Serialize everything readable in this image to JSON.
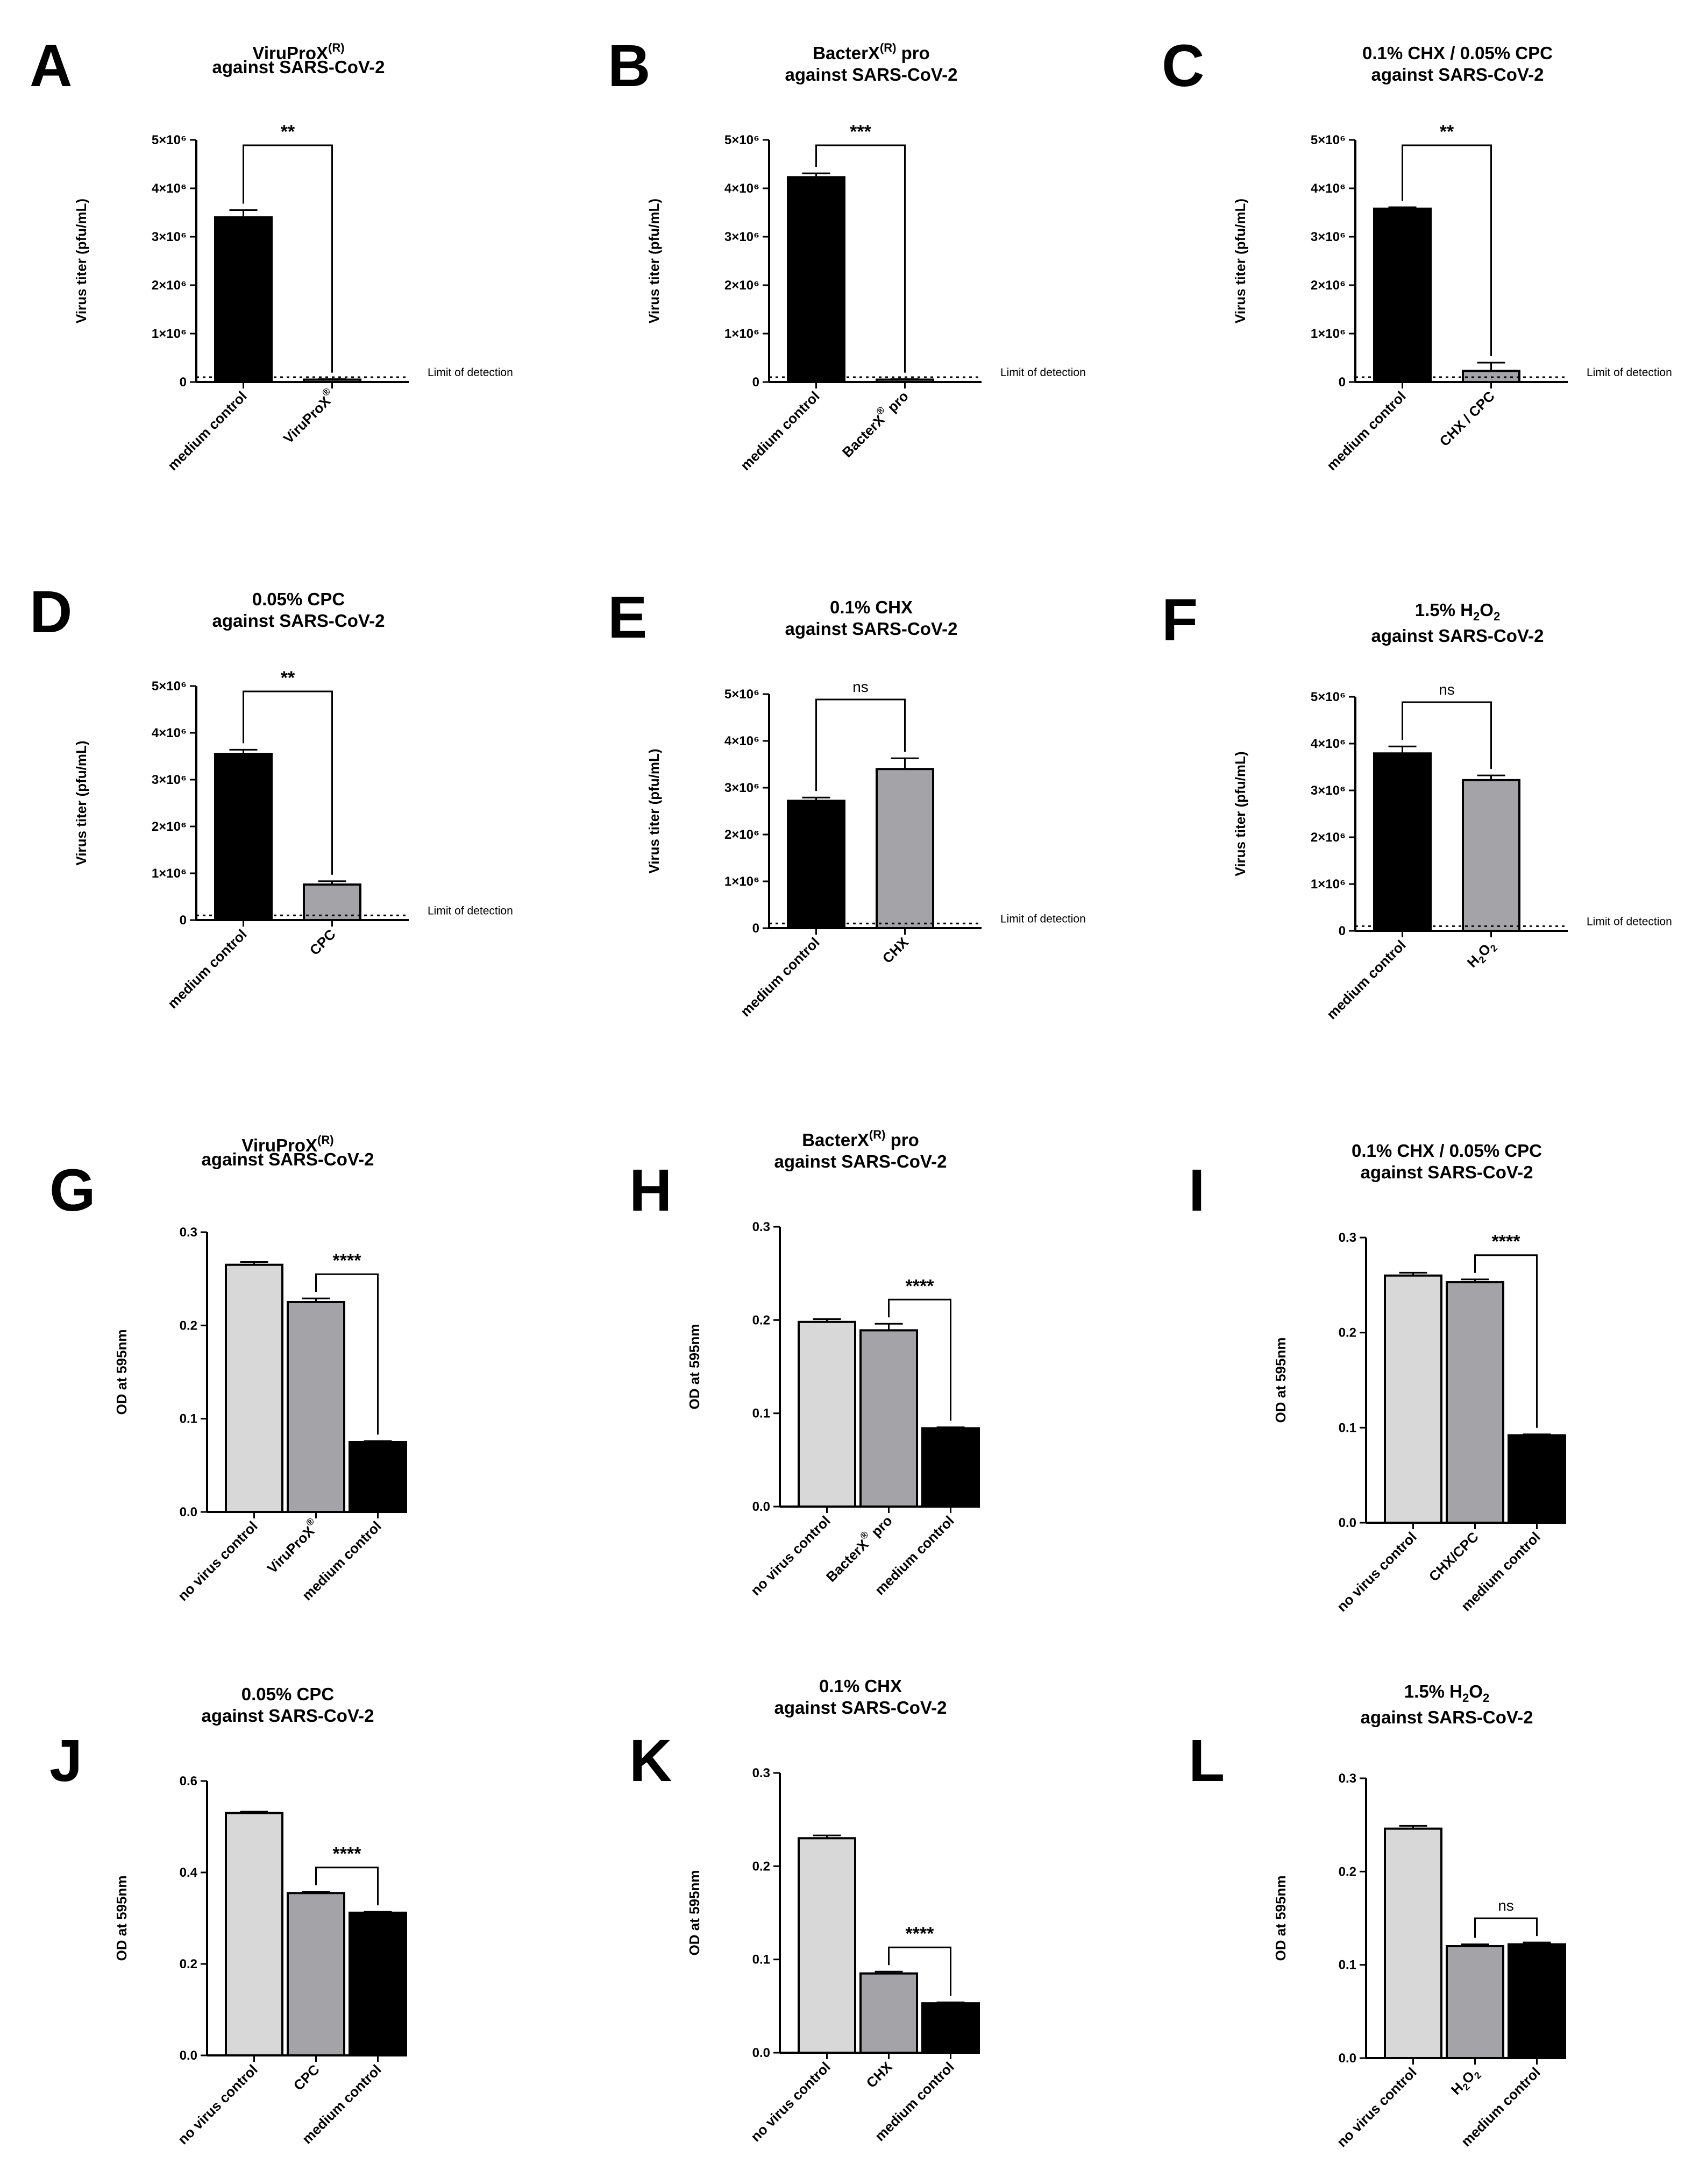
{
  "chart_data": [
    {
      "id": "A",
      "type": "bar",
      "letter": "A",
      "title_lines": [
        [
          "ViruProX",
          "(R)",
          ""
        ],
        [
          "against SARS-CoV-2",
          "",
          ""
        ]
      ],
      "ylabel": "Virus titer (pfu/mL)",
      "yticks": [
        "0",
        "1×10⁶",
        "2×10⁶",
        "3×10⁶",
        "4×10⁶",
        "5×10⁶"
      ],
      "ylim": [
        0,
        5000000
      ],
      "categories": [
        [
          "medium control",
          ""
        ],
        [
          "ViruProX",
          "®"
        ]
      ],
      "values": [
        3400000,
        50000
      ],
      "errors": [
        150000,
        10000
      ],
      "colors": [
        "#000000",
        "#a3a3a8"
      ],
      "significance": "**",
      "lod_value": 100000,
      "lod_label": "Limit of detection"
    },
    {
      "id": "B",
      "type": "bar",
      "letter": "B",
      "title_lines": [
        [
          "BacterX",
          "(R)",
          " pro"
        ],
        [
          "against SARS-CoV-2",
          "",
          ""
        ]
      ],
      "ylabel": "Virus titer (pfu/mL)",
      "yticks": [
        "0",
        "1×10⁶",
        "2×10⁶",
        "3×10⁶",
        "4×10⁶",
        "5×10⁶"
      ],
      "ylim": [
        0,
        5000000
      ],
      "categories": [
        [
          "medium control",
          ""
        ],
        [
          "BacterX",
          "®",
          " pro"
        ]
      ],
      "values": [
        4230000,
        50000
      ],
      "errors": [
        80000,
        10000
      ],
      "colors": [
        "#000000",
        "#a3a3a8"
      ],
      "significance": "***",
      "lod_value": 100000,
      "lod_label": "Limit of detection"
    },
    {
      "id": "C",
      "type": "bar",
      "letter": "C",
      "title_lines": [
        [
          "0.1% CHX / 0.05% CPC",
          "",
          ""
        ],
        [
          "against SARS-CoV-2",
          "",
          ""
        ]
      ],
      "ylabel": "Virus titer (pfu/mL)",
      "yticks": [
        "0",
        "1×10⁶",
        "2×10⁶",
        "3×10⁶",
        "4×10⁶",
        "5×10⁶"
      ],
      "ylim": [
        0,
        5000000
      ],
      "categories": [
        [
          "medium control",
          ""
        ],
        [
          "CHX / CPC",
          ""
        ]
      ],
      "values": [
        3580000,
        230000
      ],
      "errors": [
        30000,
        170000
      ],
      "colors": [
        "#000000",
        "#a3a3a8"
      ],
      "significance": "**",
      "lod_value": 100000,
      "lod_label": "Limit of detection"
    },
    {
      "id": "D",
      "type": "bar",
      "letter": "D",
      "title_lines": [
        [
          "0.05% CPC",
          "",
          ""
        ],
        [
          "against SARS-CoV-2",
          "",
          ""
        ]
      ],
      "ylabel": "Virus titer (pfu/mL)",
      "yticks": [
        "0",
        "1×10⁶",
        "2×10⁶",
        "3×10⁶",
        "4×10⁶",
        "5×10⁶"
      ],
      "ylim": [
        0,
        5000000
      ],
      "categories": [
        [
          "medium control",
          ""
        ],
        [
          "CPC",
          ""
        ]
      ],
      "values": [
        3550000,
        760000
      ],
      "errors": [
        90000,
        70000
      ],
      "colors": [
        "#000000",
        "#a3a3a8"
      ],
      "significance": "**",
      "lod_value": 100000,
      "lod_label": "Limit of detection"
    },
    {
      "id": "E",
      "type": "bar",
      "letter": "E",
      "title_lines": [
        [
          "0.1% CHX",
          "",
          ""
        ],
        [
          "against SARS-CoV-2",
          "",
          ""
        ]
      ],
      "ylabel": "Virus titer (pfu/mL)",
      "yticks": [
        "0",
        "1×10⁶",
        "2×10⁶",
        "3×10⁶",
        "4×10⁶",
        "5×10⁶"
      ],
      "ylim": [
        0,
        5000000
      ],
      "categories": [
        [
          "medium control",
          ""
        ],
        [
          "CHX",
          ""
        ]
      ],
      "values": [
        2720000,
        3400000
      ],
      "errors": [
        70000,
        230000
      ],
      "colors": [
        "#000000",
        "#a3a3a8"
      ],
      "significance": "ns",
      "lod_value": 100000,
      "lod_label": "Limit of detection"
    },
    {
      "id": "F",
      "type": "bar",
      "letter": "F",
      "title_lines": [
        [
          "1.5% H",
          "",
          ""
        ],
        [
          "against SARS-CoV-2",
          "",
          ""
        ]
      ],
      "title_formula": [
        "2",
        "O",
        "2"
      ],
      "ylabel": "Virus titer (pfu/mL)",
      "yticks": [
        "0",
        "1×10⁶",
        "2×10⁶",
        "3×10⁶",
        "4×10⁶",
        "5×10⁶"
      ],
      "ylim": [
        0,
        5000000
      ],
      "categories": [
        [
          "medium control",
          ""
        ],
        [
          "H",
          "2",
          "O",
          "2"
        ]
      ],
      "values": [
        3790000,
        3220000
      ],
      "errors": [
        150000,
        100000
      ],
      "colors": [
        "#000000",
        "#a3a3a8"
      ],
      "significance": "ns",
      "lod_value": 100000,
      "lod_label": "Limit of detection"
    },
    {
      "id": "G",
      "type": "bar",
      "letter": "G",
      "title_lines": [
        [
          "ViruProX",
          "(R)",
          ""
        ],
        [
          "against SARS-CoV-2",
          "",
          ""
        ]
      ],
      "ylabel": "OD at 595nm",
      "yticks": [
        "0.0",
        "0.1",
        "0.2",
        "0.3"
      ],
      "ylim": [
        0,
        0.3
      ],
      "categories": [
        [
          "no virus control",
          ""
        ],
        [
          "ViruProX",
          "®"
        ],
        [
          "medium control",
          ""
        ]
      ],
      "values": [
        0.265,
        0.225,
        0.075
      ],
      "errors": [
        0.003,
        0.004,
        0.001
      ],
      "colors": [
        "#d8d8d8",
        "#a3a3a8",
        "#000000"
      ],
      "significance": "****",
      "sig_pair": [
        1,
        2
      ]
    },
    {
      "id": "H",
      "type": "bar",
      "letter": "H",
      "title_lines": [
        [
          "BacterX",
          "(R)",
          " pro"
        ],
        [
          "against SARS-CoV-2",
          "",
          ""
        ]
      ],
      "ylabel": "OD at 595nm",
      "yticks": [
        "0.0",
        "0.1",
        "0.2",
        "0.3"
      ],
      "ylim": [
        0,
        0.3
      ],
      "categories": [
        [
          "no virus control",
          ""
        ],
        [
          "BacterX",
          "®",
          " pro"
        ],
        [
          "medium control",
          ""
        ]
      ],
      "values": [
        0.198,
        0.189,
        0.084
      ],
      "errors": [
        0.003,
        0.007,
        0.001
      ],
      "colors": [
        "#d8d8d8",
        "#a3a3a8",
        "#000000"
      ],
      "significance": "****",
      "sig_pair": [
        1,
        2
      ]
    },
    {
      "id": "I",
      "type": "bar",
      "letter": "I",
      "title_lines": [
        [
          "0.1% CHX / 0.05% CPC",
          "",
          ""
        ],
        [
          "against SARS-CoV-2",
          "",
          ""
        ]
      ],
      "ylabel": "OD at 595nm",
      "yticks": [
        "0.0",
        "0.1",
        "0.2",
        "0.3"
      ],
      "ylim": [
        0,
        0.3
      ],
      "categories": [
        [
          "no virus control",
          ""
        ],
        [
          "CHX/CPC",
          ""
        ],
        [
          "medium control",
          ""
        ]
      ],
      "values": [
        0.26,
        0.253,
        0.092
      ],
      "errors": [
        0.003,
        0.003,
        0.001
      ],
      "colors": [
        "#d8d8d8",
        "#a3a3a8",
        "#000000"
      ],
      "significance": "****",
      "sig_pair": [
        1,
        2
      ]
    },
    {
      "id": "J",
      "type": "bar",
      "letter": "J",
      "title_lines": [
        [
          "0.05% CPC",
          "",
          ""
        ],
        [
          "against SARS-CoV-2",
          "",
          ""
        ]
      ],
      "ylabel": "OD at 595nm",
      "yticks": [
        "0.0",
        "0.2",
        "0.4",
        "0.6"
      ],
      "ylim": [
        0,
        0.6
      ],
      "categories": [
        [
          "no virus control",
          ""
        ],
        [
          "CPC",
          ""
        ],
        [
          "medium control",
          ""
        ]
      ],
      "values": [
        0.53,
        0.355,
        0.312
      ],
      "errors": [
        0.003,
        0.003,
        0.002
      ],
      "colors": [
        "#d8d8d8",
        "#a3a3a8",
        "#000000"
      ],
      "significance": "****",
      "sig_pair": [
        1,
        2
      ]
    },
    {
      "id": "K",
      "type": "bar",
      "letter": "K",
      "title_lines": [
        [
          "0.1% CHX",
          "",
          ""
        ],
        [
          "against SARS-CoV-2",
          "",
          ""
        ]
      ],
      "ylabel": "OD at 595nm",
      "yticks": [
        "0.0",
        "0.1",
        "0.2",
        "0.3"
      ],
      "ylim": [
        0,
        0.3
      ],
      "categories": [
        [
          "no virus control",
          ""
        ],
        [
          "CHX",
          ""
        ],
        [
          "medium control",
          ""
        ]
      ],
      "values": [
        0.23,
        0.085,
        0.053
      ],
      "errors": [
        0.003,
        0.002,
        0.001
      ],
      "colors": [
        "#d8d8d8",
        "#a3a3a8",
        "#000000"
      ],
      "significance": "****",
      "sig_pair": [
        1,
        2
      ]
    },
    {
      "id": "L",
      "type": "bar",
      "letter": "L",
      "title_lines": [
        [
          "1.5% H",
          "",
          ""
        ],
        [
          "against SARS-CoV-2",
          "",
          ""
        ]
      ],
      "title_formula": [
        "2",
        "O",
        "2"
      ],
      "ylabel": "OD at 595nm",
      "yticks": [
        "0.0",
        "0.1",
        "0.2",
        "0.3"
      ],
      "ylim": [
        0,
        0.3
      ],
      "categories": [
        [
          "no virus control",
          ""
        ],
        [
          "H",
          "2",
          "O",
          "2"
        ],
        [
          "medium control",
          ""
        ]
      ],
      "values": [
        0.246,
        0.12,
        0.122
      ],
      "errors": [
        0.003,
        0.002,
        0.002
      ],
      "colors": [
        "#d8d8d8",
        "#a3a3a8",
        "#000000"
      ],
      "significance": "ns",
      "sig_pair": [
        1,
        2
      ]
    }
  ]
}
